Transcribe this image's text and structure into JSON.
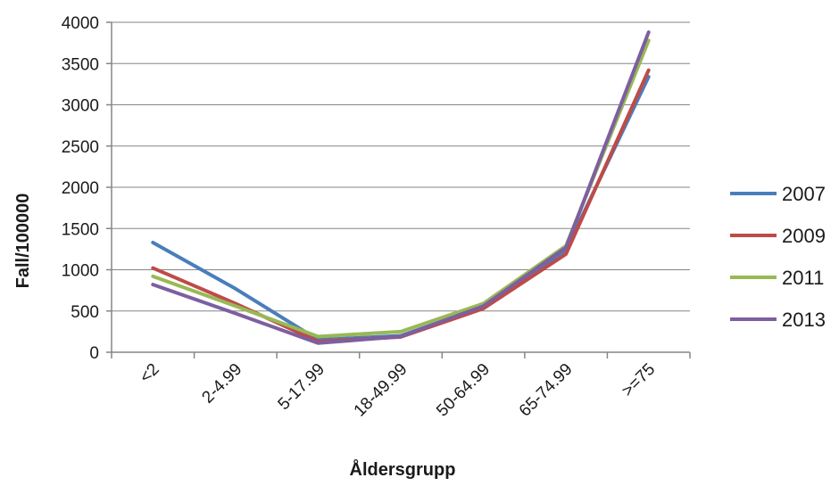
{
  "chart_data": {
    "type": "line",
    "xlabel": "Åldersgrupp",
    "ylabel": "Fall/100000",
    "categories": [
      "<2",
      "2-4.99",
      "5-17.99",
      "18-49.99",
      "50-64.99",
      "65-74.99",
      ">=75"
    ],
    "ylim": [
      0,
      4000
    ],
    "yticks": [
      "0",
      "500",
      "1000",
      "1500",
      "2000",
      "2500",
      "3000",
      "3500",
      "4000"
    ],
    "grid": true,
    "legend_position": "right",
    "series": [
      {
        "name": "2007",
        "color": "#4a7ebb",
        "values": [
          1330,
          770,
          150,
          200,
          550,
          1240,
          3340
        ]
      },
      {
        "name": "2009",
        "color": "#be4b48",
        "values": [
          1020,
          590,
          130,
          185,
          530,
          1190,
          3420
        ]
      },
      {
        "name": "2011",
        "color": "#98b954",
        "values": [
          920,
          560,
          190,
          250,
          590,
          1290,
          3780
        ]
      },
      {
        "name": "2013",
        "color": "#7d5fa0",
        "values": [
          820,
          470,
          110,
          190,
          560,
          1270,
          3880
        ]
      }
    ]
  }
}
